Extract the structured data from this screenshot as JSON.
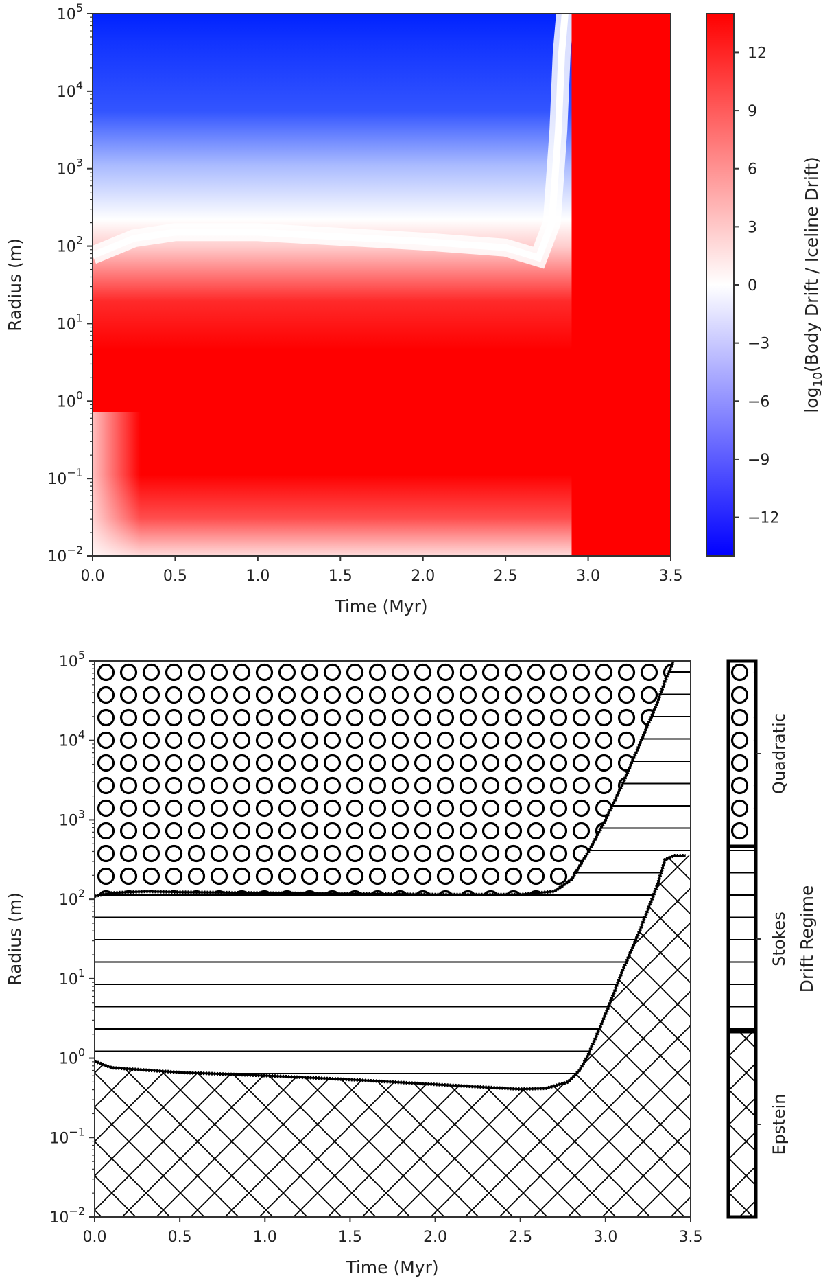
{
  "chart_data": [
    {
      "type": "heatmap",
      "xlabel": "Time (Myr)",
      "ylabel": "Radius (m)",
      "xlim": [
        0,
        3.5
      ],
      "ylim_log10": [
        -2,
        5
      ],
      "x_ticks": [
        "0.0",
        "0.5",
        "1.0",
        "1.5",
        "2.0",
        "2.5",
        "3.0",
        "3.5"
      ],
      "x_tick_values": [
        0,
        0.5,
        1.0,
        1.5,
        2.0,
        2.5,
        3.0,
        3.5
      ],
      "y_ticks": [
        {
          "exp": -2,
          "base": "10",
          "sup": "−2"
        },
        {
          "exp": -1,
          "base": "10",
          "sup": "−1"
        },
        {
          "exp": 0,
          "base": "10",
          "sup": "0"
        },
        {
          "exp": 1,
          "base": "10",
          "sup": "1"
        },
        {
          "exp": 2,
          "base": "10",
          "sup": "2"
        },
        {
          "exp": 3,
          "base": "10",
          "sup": "3"
        },
        {
          "exp": 4,
          "base": "10",
          "sup": "4"
        },
        {
          "exp": 5,
          "base": "10",
          "sup": "5"
        }
      ],
      "colorbar": {
        "label_prefix": "log",
        "label_sub": "10",
        "label_suffix": "(Body Drift / Iceline Drift)",
        "range": [
          -14,
          14
        ],
        "ticks": [
          "12",
          "9",
          "6",
          "3",
          "0",
          "−3",
          "−6",
          "−9",
          "−12"
        ],
        "tick_values": [
          12,
          9,
          6,
          3,
          0,
          -3,
          -6,
          -9,
          -12
        ],
        "colormap": [
          "#0000ff",
          "#ffffff",
          "#ff0000"
        ]
      },
      "zero_contour": {
        "time": [
          0.0,
          0.25,
          0.5,
          1.0,
          1.5,
          2.0,
          2.5,
          2.7,
          2.78,
          2.82,
          2.84,
          2.86
        ],
        "log10_radius": [
          1.88,
          2.1,
          2.18,
          2.18,
          2.12,
          2.06,
          1.98,
          1.85,
          2.3,
          3.5,
          4.5,
          5.0
        ]
      },
      "saturated_after_time": 2.9
    },
    {
      "type": "area",
      "xlabel": "Time (Myr)",
      "ylabel": "Radius (m)",
      "xlim": [
        0,
        3.5
      ],
      "ylim_log10": [
        -2,
        5
      ],
      "x_ticks": [
        "0.0",
        "0.5",
        "1.0",
        "1.5",
        "2.0",
        "2.5",
        "3.0",
        "3.5"
      ],
      "x_tick_values": [
        0,
        0.5,
        1.0,
        1.5,
        2.0,
        2.5,
        3.0,
        3.5
      ],
      "y_ticks": [
        {
          "exp": -2,
          "base": "10",
          "sup": "−2"
        },
        {
          "exp": -1,
          "base": "10",
          "sup": "−1"
        },
        {
          "exp": 0,
          "base": "10",
          "sup": "0"
        },
        {
          "exp": 1,
          "base": "10",
          "sup": "1"
        },
        {
          "exp": 2,
          "base": "10",
          "sup": "2"
        },
        {
          "exp": 3,
          "base": "10",
          "sup": "3"
        },
        {
          "exp": 4,
          "base": "10",
          "sup": "4"
        },
        {
          "exp": 5,
          "base": "10",
          "sup": "5"
        }
      ],
      "regimes": [
        "Epstein",
        "Stokes",
        "Quadratic"
      ],
      "colorbar_label": "Drift Regime",
      "epstein_stokes_boundary": {
        "time": [
          0.0,
          0.1,
          0.5,
          1.0,
          1.5,
          2.0,
          2.5,
          2.65,
          2.78,
          2.85,
          2.9,
          3.0,
          3.1,
          3.2,
          3.3,
          3.35,
          3.4,
          3.47
        ],
        "log10_radius": [
          -0.04,
          -0.12,
          -0.18,
          -0.22,
          -0.27,
          -0.33,
          -0.39,
          -0.38,
          -0.3,
          -0.15,
          0.05,
          0.55,
          1.1,
          1.6,
          2.15,
          2.5,
          2.55,
          2.55
        ]
      },
      "stokes_quadratic_boundary": {
        "time": [
          0.0,
          0.1,
          0.3,
          0.5,
          1.0,
          1.5,
          2.0,
          2.5,
          2.7,
          2.8,
          2.9,
          3.0,
          3.1,
          3.2,
          3.3,
          3.35,
          3.4
        ],
        "log10_radius": [
          2.04,
          2.08,
          2.1,
          2.09,
          2.08,
          2.07,
          2.06,
          2.06,
          2.1,
          2.25,
          2.6,
          3.0,
          3.45,
          3.95,
          4.45,
          4.75,
          5.0
        ]
      }
    }
  ]
}
